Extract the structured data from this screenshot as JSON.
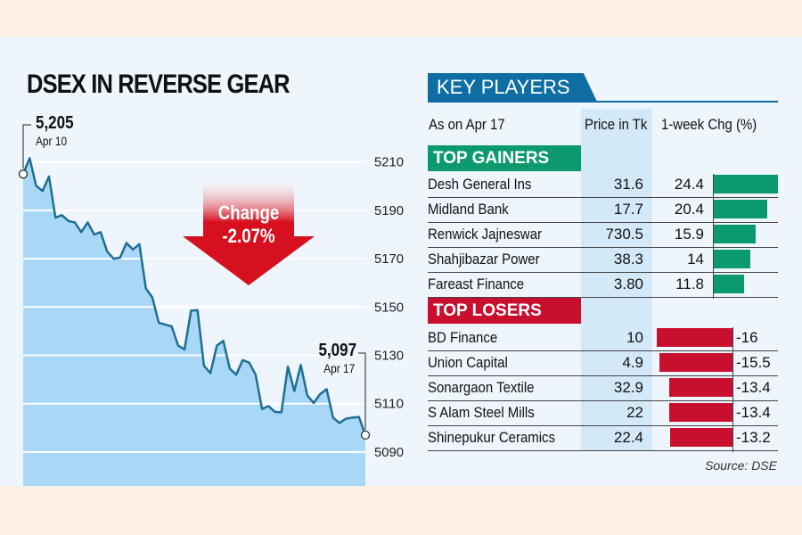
{
  "title": "DSEX IN REVERSE GEAR",
  "chart_data": {
    "type": "area",
    "title": "DSEX IN REVERSE GEAR",
    "x_start_label": "Apr 10",
    "x_end_label": "Apr 17",
    "ylim": [
      5083,
      5218
    ],
    "yticks": [
      5210,
      5190,
      5170,
      5150,
      5130,
      5110,
      5090
    ],
    "grid": true,
    "values": [
      5205,
      5211.6,
      5200.2,
      5198,
      5204,
      5187,
      5188,
      5185.6,
      5185,
      5181,
      5185,
      5180,
      5181,
      5173,
      5170,
      5170.4,
      5176.5,
      5173.8,
      5176,
      5157.7,
      5154,
      5143.5,
      5142.7,
      5142,
      5134,
      5132.5,
      5148.5,
      5148.7,
      5125.7,
      5122.6,
      5134,
      5136,
      5124.5,
      5122,
      5128,
      5127,
      5122,
      5107.8,
      5109,
      5106.6,
      5106.4,
      5125.3,
      5115.2,
      5126,
      5113.4,
      5110.3,
      5114,
      5116,
      5104.2,
      5102,
      5103.8,
      5104.2,
      5104.5,
      5097
    ],
    "start": {
      "value": "5,205",
      "date": "Apr 10"
    },
    "end": {
      "value": "5,097",
      "date": "Apr 17"
    },
    "change": {
      "label": "Change",
      "value": "-2.07%"
    },
    "colors": {
      "line": "#1f6f94",
      "fill": "#a8d8f5",
      "arrow": "#d7101f"
    }
  },
  "key_players": {
    "title": "KEY PLAYERS",
    "as_on": "As on Apr 17",
    "col_price": "Price in Tk",
    "col_change": "1-week Chg (%)",
    "gainers_label": "TOP GAINERS",
    "losers_label": "TOP LOSERS",
    "gainers": [
      {
        "name": "Desh General Ins",
        "price": "31.6",
        "change": "24.4",
        "value": 24.4
      },
      {
        "name": "Midland Bank",
        "price": "17.7",
        "change": "20.4",
        "value": 20.4
      },
      {
        "name": "Renwick Jajneswar",
        "price": "730.5",
        "change": "15.9",
        "value": 15.9
      },
      {
        "name": "Shahjibazar Power",
        "price": "38.3",
        "change": "14",
        "value": 14
      },
      {
        "name": "Fareast Finance",
        "price": "3.80",
        "change": "11.8",
        "value": 11.8
      }
    ],
    "losers": [
      {
        "name": "BD Finance",
        "price": "10",
        "change": "-16",
        "value": -16
      },
      {
        "name": "Union Capital",
        "price": "4.9",
        "change": "-15.5",
        "value": -15.5
      },
      {
        "name": "Sonargaon Textile",
        "price": "32.9",
        "change": "-13.4",
        "value": -13.4
      },
      {
        "name": "S Alam Steel Mills",
        "price": "22",
        "change": "-13.4",
        "value": -13.4
      },
      {
        "name": "Shinepukur Ceramics",
        "price": "22.4",
        "change": "-13.2",
        "value": -13.2
      }
    ],
    "colors": {
      "header": "#0e6ea3",
      "gainer": "#0a9a6e",
      "loser": "#c8102e"
    }
  },
  "source": "Source: DSE"
}
